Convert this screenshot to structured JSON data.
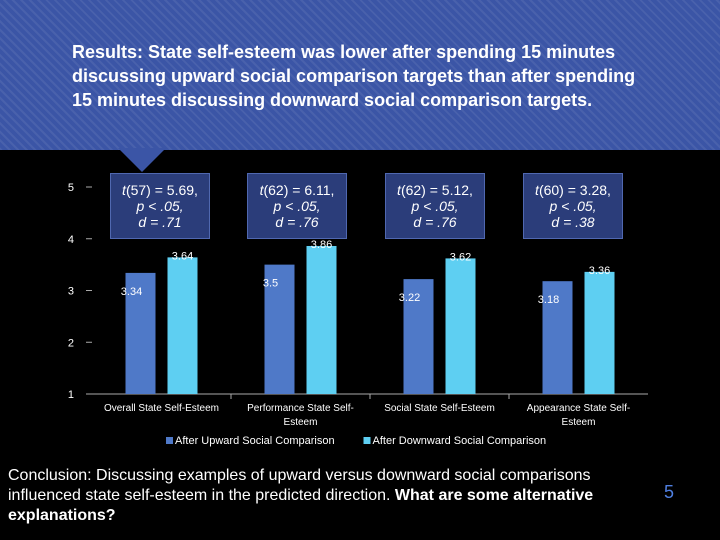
{
  "header": {
    "title": "Results: State self-esteem was lower after spending 15 minutes discussing upward social comparison targets than after spending 15 minutes discussing downward social comparison targets."
  },
  "stats": [
    {
      "t": "(57) = 5.69,",
      "p": "p < .05,",
      "d": "d = .71"
    },
    {
      "t": "(62) = 6.11,",
      "p": "p < .05,",
      "d": "d = .76"
    },
    {
      "t": "(62) = 5.12,",
      "p": "p < .05,",
      "d": "d = .76"
    },
    {
      "t": "(60) = 3.28,",
      "p": "p < .05,",
      "d": "d = .38"
    }
  ],
  "stat_t_letter": "t",
  "chart_data": {
    "type": "bar",
    "categories": [
      "Overall State Self-Esteem",
      "Performance State Self-Esteem",
      "Social State Self-Esteem",
      "Appearance State Self-Esteem"
    ],
    "series": [
      {
        "name": "After Upward Social Comparison",
        "values": [
          3.34,
          3.5,
          3.22,
          3.18
        ],
        "labels": [
          "3.34",
          "3.5",
          "3.22",
          "3.18"
        ],
        "color": "#4f79c8"
      },
      {
        "name": "After Downward Social Comparison",
        "values": [
          3.64,
          3.86,
          3.62,
          3.36
        ],
        "labels": [
          "3.64",
          "3.86",
          "3.62",
          "3.36"
        ],
        "color": "#5ecff2"
      }
    ],
    "ylim": [
      1,
      5
    ],
    "yticks": [
      1,
      2,
      3,
      4,
      5
    ],
    "legend_position": "bottom",
    "grid": false
  },
  "conclusion": {
    "text": "Conclusion: Discussing examples of upward versus downward social comparisons influenced state self-esteem in the predicted direction.",
    "question": "What are some alternative explanations?"
  },
  "page_number": "5",
  "colors": {
    "header_bg": "#3b55a6",
    "stat_box_bg": "#2b3d7a",
    "page_number": "#4f7fe0"
  }
}
